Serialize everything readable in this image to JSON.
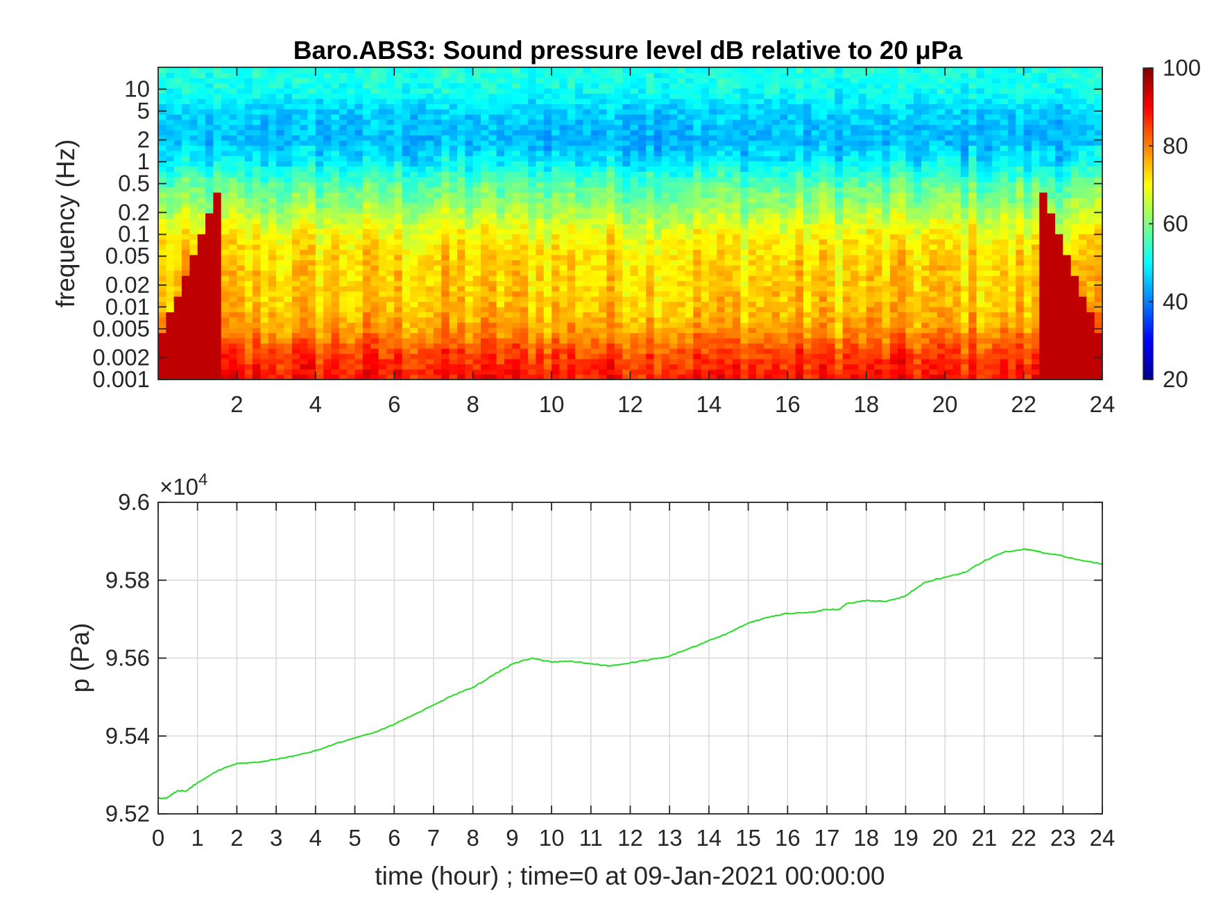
{
  "chart_data": [
    {
      "type": "heatmap",
      "title": "Baro.ABS3: Sound pressure level dB relative to 20 μPa",
      "xlabel": "",
      "ylabel": "frequency (Hz)",
      "xlim": [
        0,
        24
      ],
      "ylim": [
        0.001,
        20
      ],
      "yscale": "log",
      "x_ticks": [
        2,
        4,
        6,
        8,
        10,
        12,
        14,
        16,
        18,
        20,
        22,
        24
      ],
      "y_ticks": [
        0.001,
        0.002,
        0.005,
        0.01,
        0.02,
        0.05,
        0.1,
        0.2,
        0.5,
        1,
        2,
        5,
        10
      ],
      "y_tick_labels": [
        "0.001",
        "0.002",
        "0.005",
        "0.01",
        "0.02",
        "0.05",
        "0.1",
        "0.2",
        "0.5",
        "1",
        "2",
        "5",
        "10"
      ],
      "colormap": "jet",
      "colorbar": {
        "range": [
          20,
          100
        ],
        "ticks": [
          20,
          40,
          60,
          80,
          100
        ]
      },
      "level_profile_by_frequency": [
        {
          "freq": 0.001,
          "db": 88
        },
        {
          "freq": 0.002,
          "db": 85
        },
        {
          "freq": 0.005,
          "db": 77
        },
        {
          "freq": 0.01,
          "db": 74
        },
        {
          "freq": 0.02,
          "db": 73
        },
        {
          "freq": 0.05,
          "db": 72
        },
        {
          "freq": 0.1,
          "db": 69
        },
        {
          "freq": 0.2,
          "db": 63
        },
        {
          "freq": 0.5,
          "db": 56
        },
        {
          "freq": 1,
          "db": 48
        },
        {
          "freq": 2,
          "db": 44
        },
        {
          "freq": 5,
          "db": 46
        },
        {
          "freq": 10,
          "db": 51
        },
        {
          "freq": 20,
          "db": 52
        }
      ],
      "grid": false
    },
    {
      "type": "line",
      "title": "",
      "xlabel": "time (hour) ; time=0 at 09-Jan-2021 00:00:00",
      "ylabel": "p (Pa)",
      "y_exponent_label": "×10",
      "y_exponent_power": "4",
      "xlim": [
        0,
        24
      ],
      "ylim": [
        95200,
        96000
      ],
      "x_ticks": [
        0,
        1,
        2,
        3,
        4,
        5,
        6,
        7,
        8,
        9,
        10,
        11,
        12,
        13,
        14,
        15,
        16,
        17,
        18,
        19,
        20,
        21,
        22,
        23,
        24
      ],
      "y_ticks": [
        95200,
        95400,
        95600,
        95800,
        96000
      ],
      "y_tick_labels": [
        "9.52",
        "9.54",
        "9.56",
        "9.58",
        "9.6"
      ],
      "grid": true,
      "series": [
        {
          "color": "#22dd22",
          "x": [
            0,
            0.2,
            0.5,
            0.7,
            1,
            1.5,
            2,
            2.5,
            3,
            3.5,
            4,
            4.5,
            5,
            5.5,
            6,
            6.5,
            7,
            7.5,
            8,
            8.5,
            9,
            9.5,
            10,
            10.5,
            11,
            11.5,
            12,
            12.5,
            13,
            13.5,
            14,
            14.5,
            15,
            15.5,
            16,
            16.5,
            17,
            17.3,
            17.5,
            18,
            18.5,
            19,
            19.5,
            20,
            20.5,
            21,
            21.5,
            22,
            22.3,
            22.5,
            23,
            23.5,
            24
          ],
          "y": [
            95240,
            95240,
            95260,
            95258,
            95280,
            95310,
            95330,
            95332,
            95340,
            95350,
            95362,
            95380,
            95395,
            95410,
            95430,
            95455,
            95480,
            95505,
            95525,
            95555,
            95585,
            95600,
            95590,
            95592,
            95585,
            95580,
            95588,
            95596,
            95605,
            95625,
            95645,
            95665,
            95690,
            95705,
            95715,
            95716,
            95725,
            95725,
            95740,
            95748,
            95745,
            95760,
            95795,
            95808,
            95820,
            95850,
            95872,
            95880,
            95876,
            95870,
            95862,
            95850,
            95842
          ]
        }
      ]
    }
  ]
}
